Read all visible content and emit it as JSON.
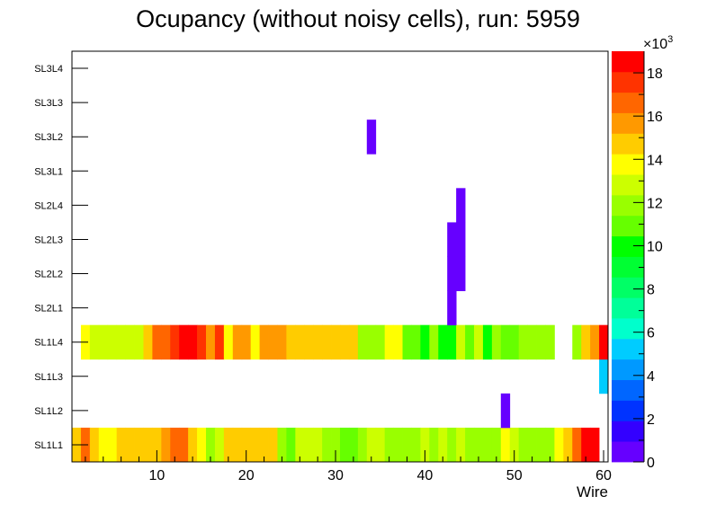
{
  "chart_data": {
    "type": "heatmap",
    "title": "Ocupancy (without noisy cells), run: 5959",
    "xlabel": "Wire",
    "ylabel": "",
    "xlim": [
      0.5,
      60.5
    ],
    "x_ticks": [
      10,
      20,
      30,
      40,
      50,
      60
    ],
    "layers": [
      "SL1L1",
      "SL1L2",
      "SL1L3",
      "SL1L4",
      "SL2L1",
      "SL2L2",
      "SL2L3",
      "SL2L4",
      "SL3L1",
      "SL3L2",
      "SL3L3",
      "SL3L4"
    ],
    "z_range": [
      0,
      19000
    ],
    "z_ticks": [
      "0",
      "2",
      "4",
      "6",
      "8",
      "10",
      "12",
      "14",
      "16",
      "18"
    ],
    "z_exponent_label": "×10",
    "z_exponent_power": "3",
    "z_palette": [
      "#6600ff",
      "#3300ff",
      "#0033ff",
      "#0066ff",
      "#0099ff",
      "#00ccff",
      "#00ffcc",
      "#00ff99",
      "#00ff66",
      "#00ff33",
      "#00ff00",
      "#66ff00",
      "#99ff00",
      "#ccff00",
      "#ffff00",
      "#ffcc00",
      "#ff9900",
      "#ff6600",
      "#ff3300",
      "#ff0000"
    ],
    "cells": {
      "SL1L1": [
        15000,
        16500,
        15000,
        14000,
        13500,
        14500,
        15000,
        15000,
        15000,
        15000,
        16000,
        16500,
        16500,
        14500,
        13500,
        12000,
        13000,
        14500,
        15000,
        15000,
        15000,
        15000,
        15000,
        11500,
        11000,
        12500,
        12500,
        12500,
        11500,
        12000,
        11000,
        11000,
        12000,
        12500,
        13000,
        12000,
        12000,
        12000,
        12000,
        13000,
        12000,
        12500,
        11500,
        12500,
        11500,
        11500,
        11500,
        11500,
        13500,
        13000,
        12000,
        12000,
        12000,
        12000,
        13500,
        14500,
        17000,
        18500,
        19000,
        null
      ],
      "SL1L2": [
        null,
        null,
        null,
        null,
        null,
        null,
        null,
        null,
        null,
        null,
        null,
        null,
        null,
        null,
        null,
        null,
        null,
        null,
        null,
        null,
        null,
        null,
        null,
        null,
        null,
        null,
        null,
        null,
        null,
        null,
        null,
        null,
        null,
        null,
        null,
        null,
        null,
        null,
        null,
        null,
        null,
        null,
        null,
        null,
        null,
        null,
        null,
        null,
        300,
        null,
        null,
        null,
        null,
        null,
        null,
        null,
        null,
        null,
        null,
        null
      ],
      "SL1L3": [
        null,
        null,
        null,
        null,
        null,
        null,
        null,
        null,
        null,
        null,
        null,
        null,
        null,
        null,
        null,
        null,
        null,
        null,
        null,
        null,
        null,
        null,
        null,
        null,
        null,
        null,
        null,
        null,
        null,
        null,
        null,
        null,
        null,
        null,
        null,
        null,
        null,
        null,
        null,
        null,
        null,
        null,
        null,
        null,
        null,
        null,
        null,
        null,
        null,
        null,
        null,
        null,
        null,
        null,
        null,
        null,
        null,
        null,
        null,
        5000
      ],
      "SL1L4": [
        null,
        14000,
        12500,
        12500,
        12500,
        12500,
        12500,
        12500,
        14500,
        16500,
        17000,
        18000,
        19000,
        19000,
        17500,
        16000,
        18000,
        14000,
        16000,
        16000,
        14000,
        16000,
        16000,
        16000,
        14500,
        14500,
        14500,
        14500,
        14500,
        14500,
        14500,
        14500,
        12000,
        12000,
        12000,
        14000,
        14000,
        11000,
        11000,
        10000,
        12000,
        10000,
        10000,
        12500,
        11000,
        12500,
        10000,
        12000,
        11000,
        11000,
        12000,
        12000,
        12000,
        12000,
        null,
        null,
        12000,
        14500,
        16000,
        19000
      ],
      "SL2L1": [
        null,
        null,
        null,
        null,
        null,
        null,
        null,
        null,
        null,
        null,
        null,
        null,
        null,
        null,
        null,
        null,
        null,
        null,
        null,
        null,
        null,
        null,
        null,
        null,
        null,
        null,
        null,
        null,
        null,
        null,
        null,
        null,
        null,
        null,
        null,
        null,
        null,
        null,
        null,
        null,
        null,
        null,
        300,
        null,
        null,
        null,
        null,
        null,
        null,
        null,
        null,
        null,
        null,
        null,
        null,
        null,
        null,
        null,
        null,
        null
      ],
      "SL2L2": [
        null,
        null,
        null,
        null,
        null,
        null,
        null,
        null,
        null,
        null,
        null,
        null,
        null,
        null,
        null,
        null,
        null,
        null,
        null,
        null,
        null,
        null,
        null,
        null,
        null,
        null,
        null,
        null,
        null,
        null,
        null,
        null,
        null,
        null,
        null,
        null,
        null,
        null,
        null,
        null,
        null,
        null,
        300,
        300,
        null,
        null,
        null,
        null,
        null,
        null,
        null,
        null,
        null,
        null,
        null,
        null,
        null,
        null,
        null,
        null
      ],
      "SL2L3": [
        null,
        null,
        null,
        null,
        null,
        null,
        null,
        null,
        null,
        null,
        null,
        null,
        null,
        null,
        null,
        null,
        null,
        null,
        null,
        null,
        null,
        null,
        null,
        null,
        null,
        null,
        null,
        null,
        null,
        null,
        null,
        null,
        null,
        null,
        null,
        null,
        null,
        null,
        null,
        null,
        null,
        null,
        300,
        300,
        null,
        null,
        null,
        null,
        null,
        null,
        null,
        null,
        null,
        null,
        null,
        null,
        null,
        null,
        null,
        null
      ],
      "SL2L4": [
        null,
        null,
        null,
        null,
        null,
        null,
        null,
        null,
        null,
        null,
        null,
        null,
        null,
        null,
        null,
        null,
        null,
        null,
        null,
        null,
        null,
        null,
        null,
        null,
        null,
        null,
        null,
        null,
        null,
        null,
        null,
        null,
        null,
        null,
        null,
        null,
        null,
        null,
        null,
        null,
        null,
        null,
        null,
        300,
        null,
        null,
        null,
        null,
        null,
        null,
        null,
        null,
        null,
        null,
        null,
        null,
        null,
        null,
        null,
        null
      ],
      "SL3L1": [
        null,
        null,
        null,
        null,
        null,
        null,
        null,
        null,
        null,
        null,
        null,
        null,
        null,
        null,
        null,
        null,
        null,
        null,
        null,
        null,
        null,
        null,
        null,
        null,
        null,
        null,
        null,
        null,
        null,
        null,
        null,
        null,
        null,
        null,
        null,
        null,
        null,
        null,
        null,
        null,
        null,
        null,
        null,
        null,
        null,
        null,
        null,
        null,
        null,
        null,
        null,
        null,
        null,
        null,
        null,
        null,
        null,
        null,
        null,
        null
      ],
      "SL3L2": [
        null,
        null,
        null,
        null,
        null,
        null,
        null,
        null,
        null,
        null,
        null,
        null,
        null,
        null,
        null,
        null,
        null,
        null,
        null,
        null,
        null,
        null,
        null,
        null,
        null,
        null,
        null,
        null,
        null,
        null,
        null,
        null,
        null,
        300,
        null,
        null,
        null,
        null,
        null,
        null,
        null,
        null,
        null,
        null,
        null,
        null,
        null,
        null,
        null,
        null,
        null,
        null,
        null,
        null,
        null,
        null,
        null,
        null,
        null,
        null
      ],
      "SL3L3": [
        null,
        null,
        null,
        null,
        null,
        null,
        null,
        null,
        null,
        null,
        null,
        null,
        null,
        null,
        null,
        null,
        null,
        null,
        null,
        null,
        null,
        null,
        null,
        null,
        null,
        null,
        null,
        null,
        null,
        null,
        null,
        null,
        null,
        null,
        null,
        null,
        null,
        null,
        null,
        null,
        null,
        null,
        null,
        null,
        null,
        null,
        null,
        null,
        null,
        null,
        null,
        null,
        null,
        null,
        null,
        null,
        null,
        null,
        null,
        null
      ],
      "SL3L4": [
        null,
        null,
        null,
        null,
        null,
        null,
        null,
        null,
        null,
        null,
        null,
        null,
        null,
        null,
        null,
        null,
        null,
        null,
        null,
        null,
        null,
        null,
        null,
        null,
        null,
        null,
        null,
        null,
        null,
        null,
        null,
        null,
        null,
        null,
        null,
        null,
        null,
        null,
        null,
        null,
        null,
        null,
        null,
        null,
        null,
        null,
        null,
        null,
        null,
        null,
        null,
        null,
        null,
        null,
        null,
        null,
        null,
        null,
        null,
        null
      ]
    }
  }
}
